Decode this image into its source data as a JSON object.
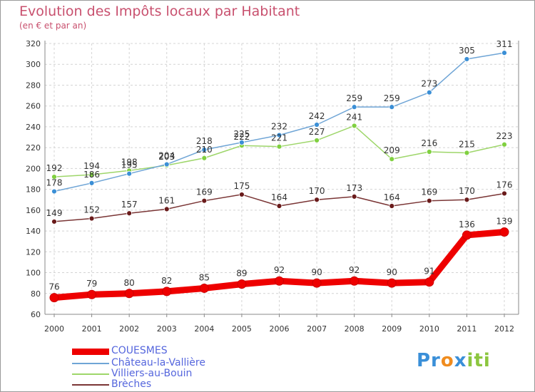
{
  "chart_data": {
    "type": "line",
    "title": "Evolution des Impôts locaux par Habitant",
    "subtitle": "(en € et par an)",
    "categories": [
      "2000",
      "2001",
      "2002",
      "2003",
      "2004",
      "2005",
      "2006",
      "2007",
      "2008",
      "2009",
      "2010",
      "2011",
      "2012"
    ],
    "ylim": [
      60,
      320
    ],
    "yticks": [
      60,
      80,
      100,
      120,
      140,
      160,
      180,
      200,
      220,
      240,
      260,
      280,
      300,
      320
    ],
    "grid": true,
    "legend_position": "bottom-left",
    "series": [
      {
        "name": "COUESMES",
        "values": [
          76,
          79,
          80,
          82,
          85,
          89,
          92,
          90,
          92,
          90,
          91,
          136,
          139
        ],
        "color": "#ee0000",
        "line_color": "#ee0000"
      },
      {
        "name": "Château-la-Vallière",
        "values": [
          178,
          186,
          195,
          204,
          218,
          225,
          232,
          242,
          259,
          259,
          273,
          305,
          311
        ],
        "color": "#3b8fd6",
        "line_color": "#6fa5d6"
      },
      {
        "name": "Villiers-au-Bouin",
        "values": [
          192,
          194,
          198,
          203,
          210,
          222,
          221,
          227,
          241,
          209,
          216,
          215,
          223
        ],
        "color": "#80d040",
        "line_color": "#9ed66a"
      },
      {
        "name": "Brèches",
        "values": [
          149,
          152,
          157,
          161,
          169,
          175,
          164,
          170,
          173,
          164,
          169,
          170,
          176
        ],
        "color": "#6a1b1b",
        "line_color": "#7a3535"
      }
    ]
  },
  "logo": {
    "text_parts": [
      "Pr",
      "o",
      "x",
      "iti"
    ],
    "colors": [
      "#3a8fd8",
      "#f08c1e",
      "#3a8fd8",
      "#8cc63f"
    ]
  }
}
